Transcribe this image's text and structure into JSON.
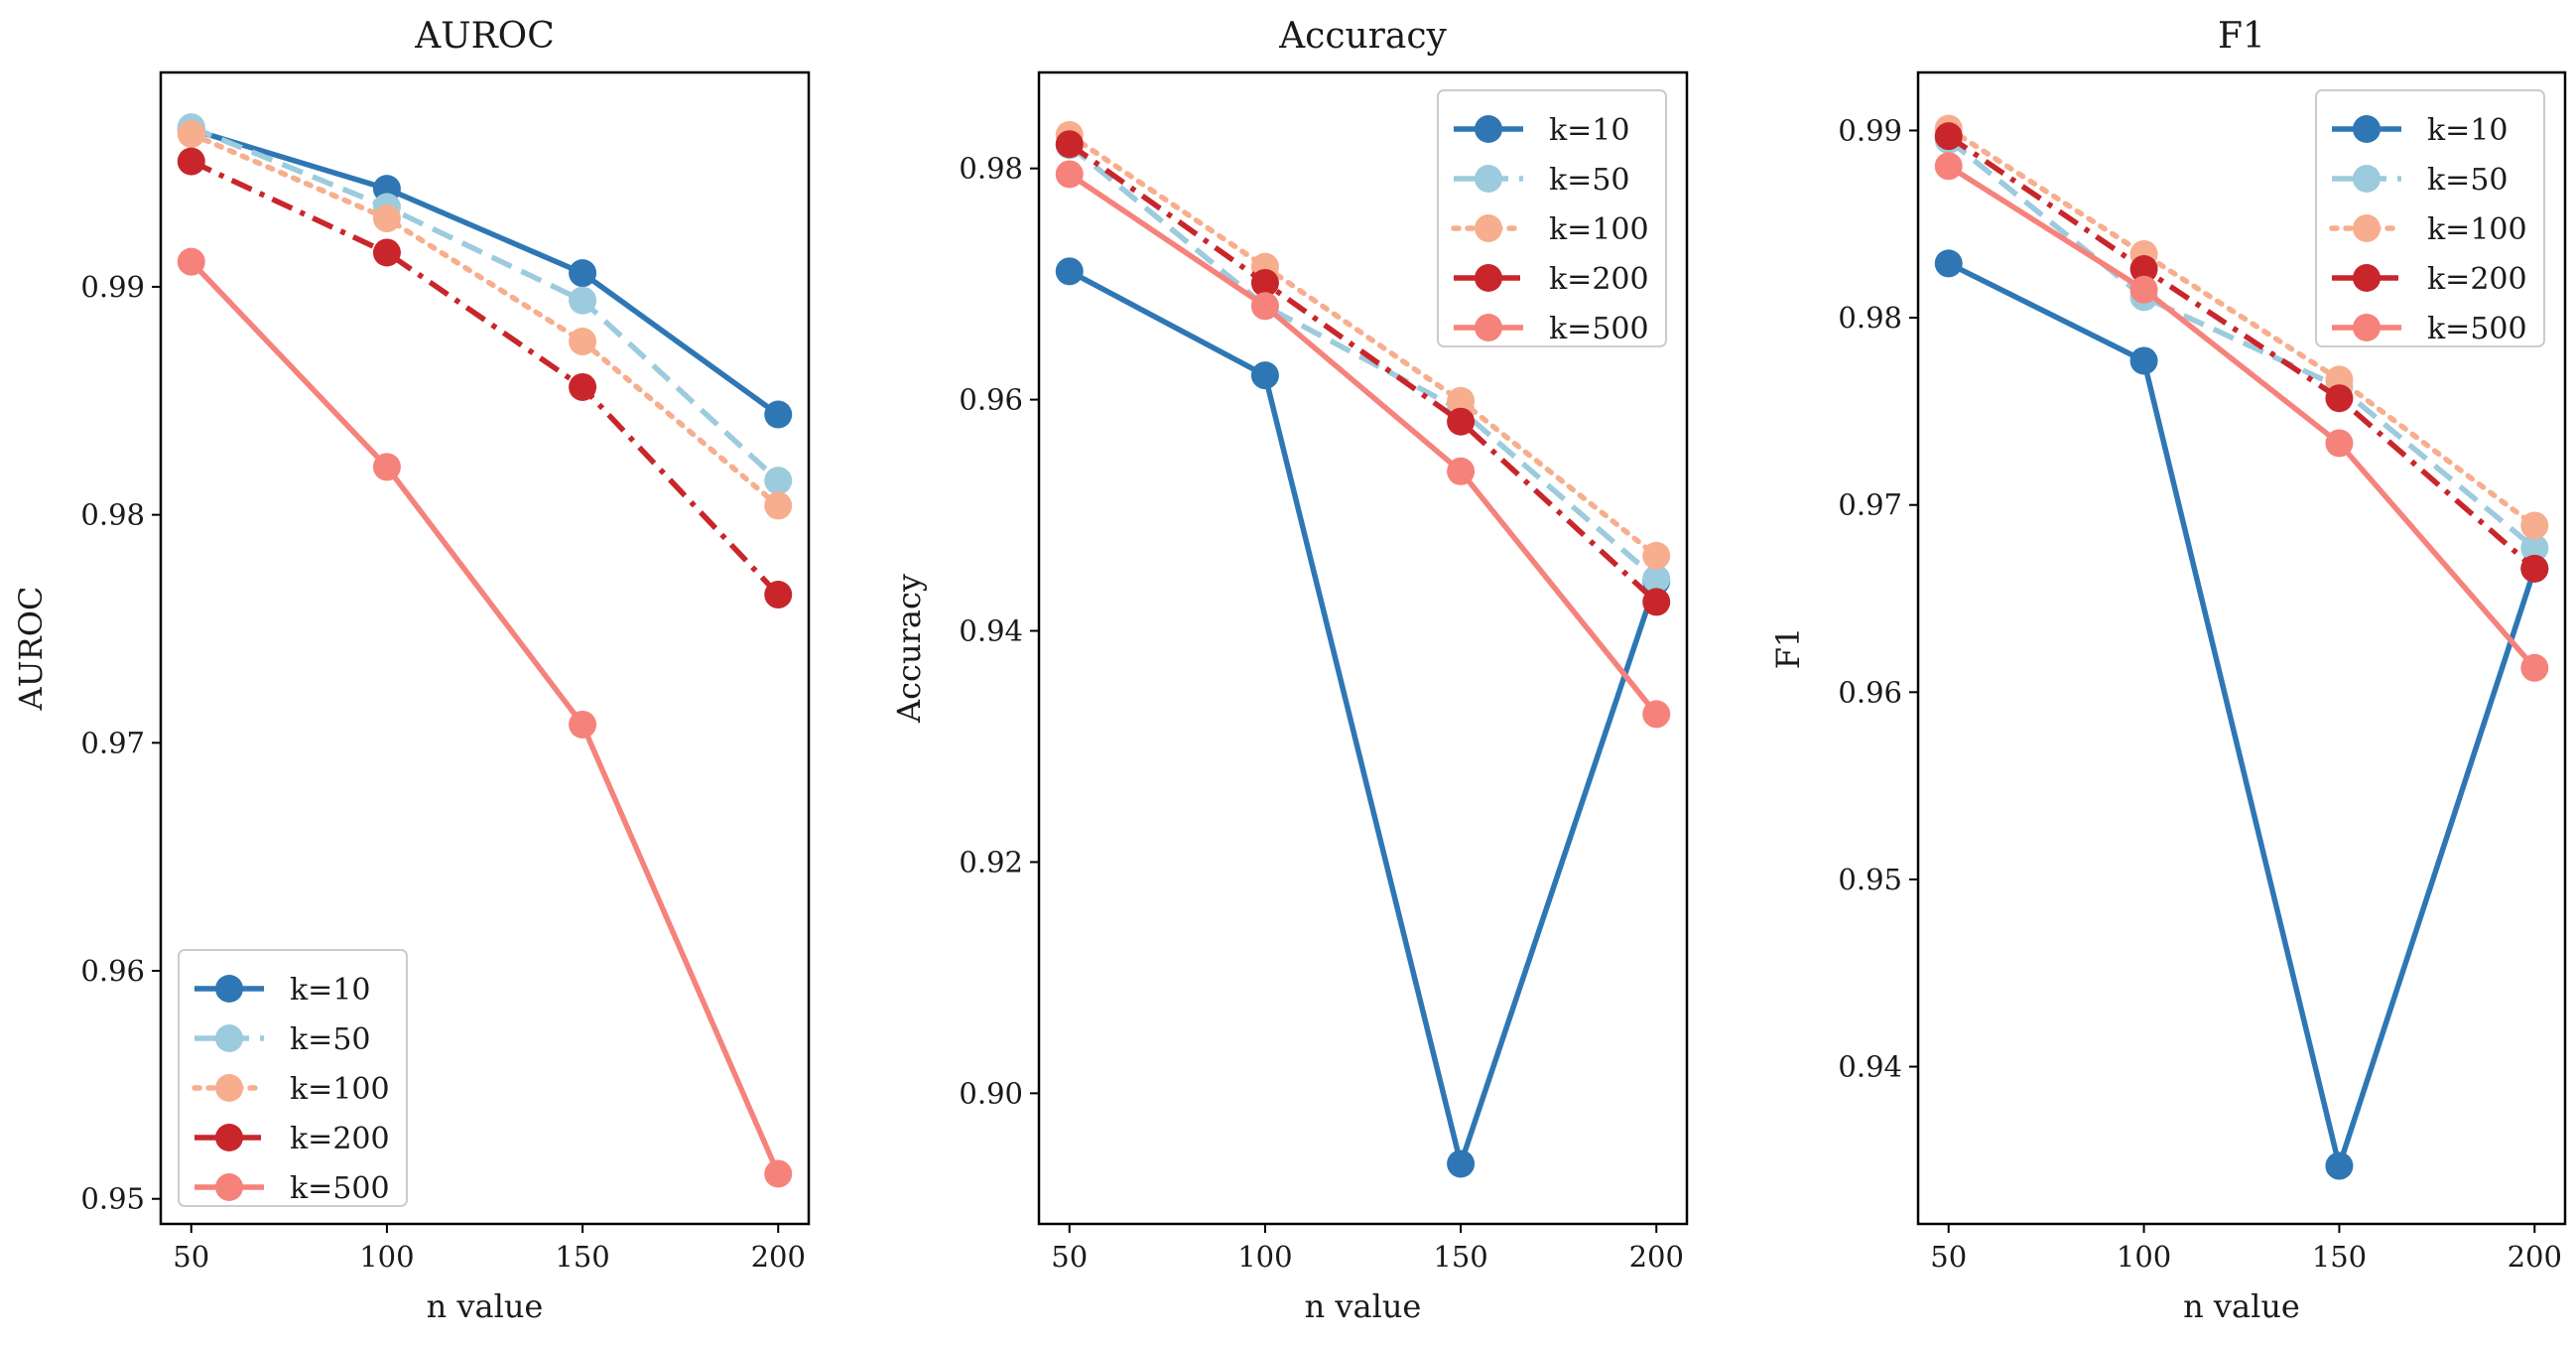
{
  "colors": {
    "k=10": "#2e77b4",
    "k=50": "#9ccbdd",
    "k=100": "#f7ae8e",
    "k=200": "#c8262b",
    "k=500": "#f6827c"
  },
  "chart_data": [
    {
      "type": "line",
      "title": "AUROC",
      "xlabel": "n value",
      "ylabel": "AUROC",
      "x": [
        50,
        100,
        150,
        200
      ],
      "xticks": [
        "50",
        "100",
        "150",
        "200"
      ],
      "yticks": [
        "0.95",
        "0.96",
        "0.97",
        "0.98",
        "0.99"
      ],
      "ytick_values": [
        0.95,
        0.96,
        0.97,
        0.98,
        0.99
      ],
      "xlim": [
        42.2,
        207.8
      ],
      "ylim": [
        0.9489,
        0.9994
      ],
      "legend": "lower-left",
      "series": [
        {
          "name": "k=10",
          "style": "solid",
          "values": [
            0.9969,
            0.9943,
            0.9906,
            0.9844
          ]
        },
        {
          "name": "k=50",
          "style": "dashed",
          "values": [
            0.997,
            0.9935,
            0.9894,
            0.9815
          ]
        },
        {
          "name": "k=100",
          "style": "dotted",
          "values": [
            0.9967,
            0.993,
            0.9876,
            0.9804
          ]
        },
        {
          "name": "k=200",
          "style": "dashdot",
          "values": [
            0.9955,
            0.9915,
            0.9856,
            0.9765
          ]
        },
        {
          "name": "k=500",
          "style": "solid",
          "values": [
            0.9911,
            0.9821,
            0.9708,
            0.9511
          ]
        }
      ]
    },
    {
      "type": "line",
      "title": "Accuracy",
      "xlabel": "n value",
      "ylabel": "Accuracy",
      "x": [
        50,
        100,
        150,
        200
      ],
      "xticks": [
        "50",
        "100",
        "150",
        "200"
      ],
      "yticks": [
        "0.90",
        "0.92",
        "0.94",
        "0.96",
        "0.98"
      ],
      "ytick_values": [
        0.9,
        0.92,
        0.94,
        0.96,
        0.98
      ],
      "xlim": [
        42.2,
        207.8
      ],
      "ylim": [
        0.8887,
        0.9883
      ],
      "legend": "upper-right",
      "series": [
        {
          "name": "k=10",
          "style": "solid",
          "values": [
            0.9711,
            0.9621,
            0.8939,
            0.9443
          ]
        },
        {
          "name": "k=50",
          "style": "dashed",
          "values": [
            0.982,
            0.9681,
            0.9591,
            0.9445
          ]
        },
        {
          "name": "k=100",
          "style": "dotted",
          "values": [
            0.9829,
            0.9715,
            0.9599,
            0.9465
          ]
        },
        {
          "name": "k=200",
          "style": "dashdot",
          "values": [
            0.9821,
            0.9701,
            0.9581,
            0.9425
          ]
        },
        {
          "name": "k=500",
          "style": "solid",
          "values": [
            0.9795,
            0.9681,
            0.9538,
            0.9328
          ]
        }
      ]
    },
    {
      "type": "line",
      "title": "F1",
      "xlabel": "n value",
      "ylabel": "F1",
      "x": [
        50,
        100,
        150,
        200
      ],
      "xticks": [
        "50",
        "100",
        "150",
        "200"
      ],
      "yticks": [
        "0.94",
        "0.95",
        "0.96",
        "0.97",
        "0.98",
        "0.99"
      ],
      "ytick_values": [
        0.94,
        0.95,
        0.96,
        0.97,
        0.98,
        0.99
      ],
      "xlim": [
        42.2,
        207.8
      ],
      "ylim": [
        0.9316,
        0.9931
      ],
      "legend": "upper-right",
      "series": [
        {
          "name": "k=10",
          "style": "solid",
          "values": [
            0.9829,
            0.9777,
            0.9347,
            0.9666
          ]
        },
        {
          "name": "k=50",
          "style": "dashed",
          "values": [
            0.9895,
            0.9811,
            0.9763,
            0.9677
          ]
        },
        {
          "name": "k=100",
          "style": "dotted",
          "values": [
            0.9901,
            0.9834,
            0.9767,
            0.9689
          ]
        },
        {
          "name": "k=200",
          "style": "dashdot",
          "values": [
            0.9897,
            0.9826,
            0.9757,
            0.9666
          ]
        },
        {
          "name": "k=500",
          "style": "solid",
          "values": [
            0.9881,
            0.9815,
            0.9733,
            0.9613
          ]
        }
      ]
    }
  ]
}
